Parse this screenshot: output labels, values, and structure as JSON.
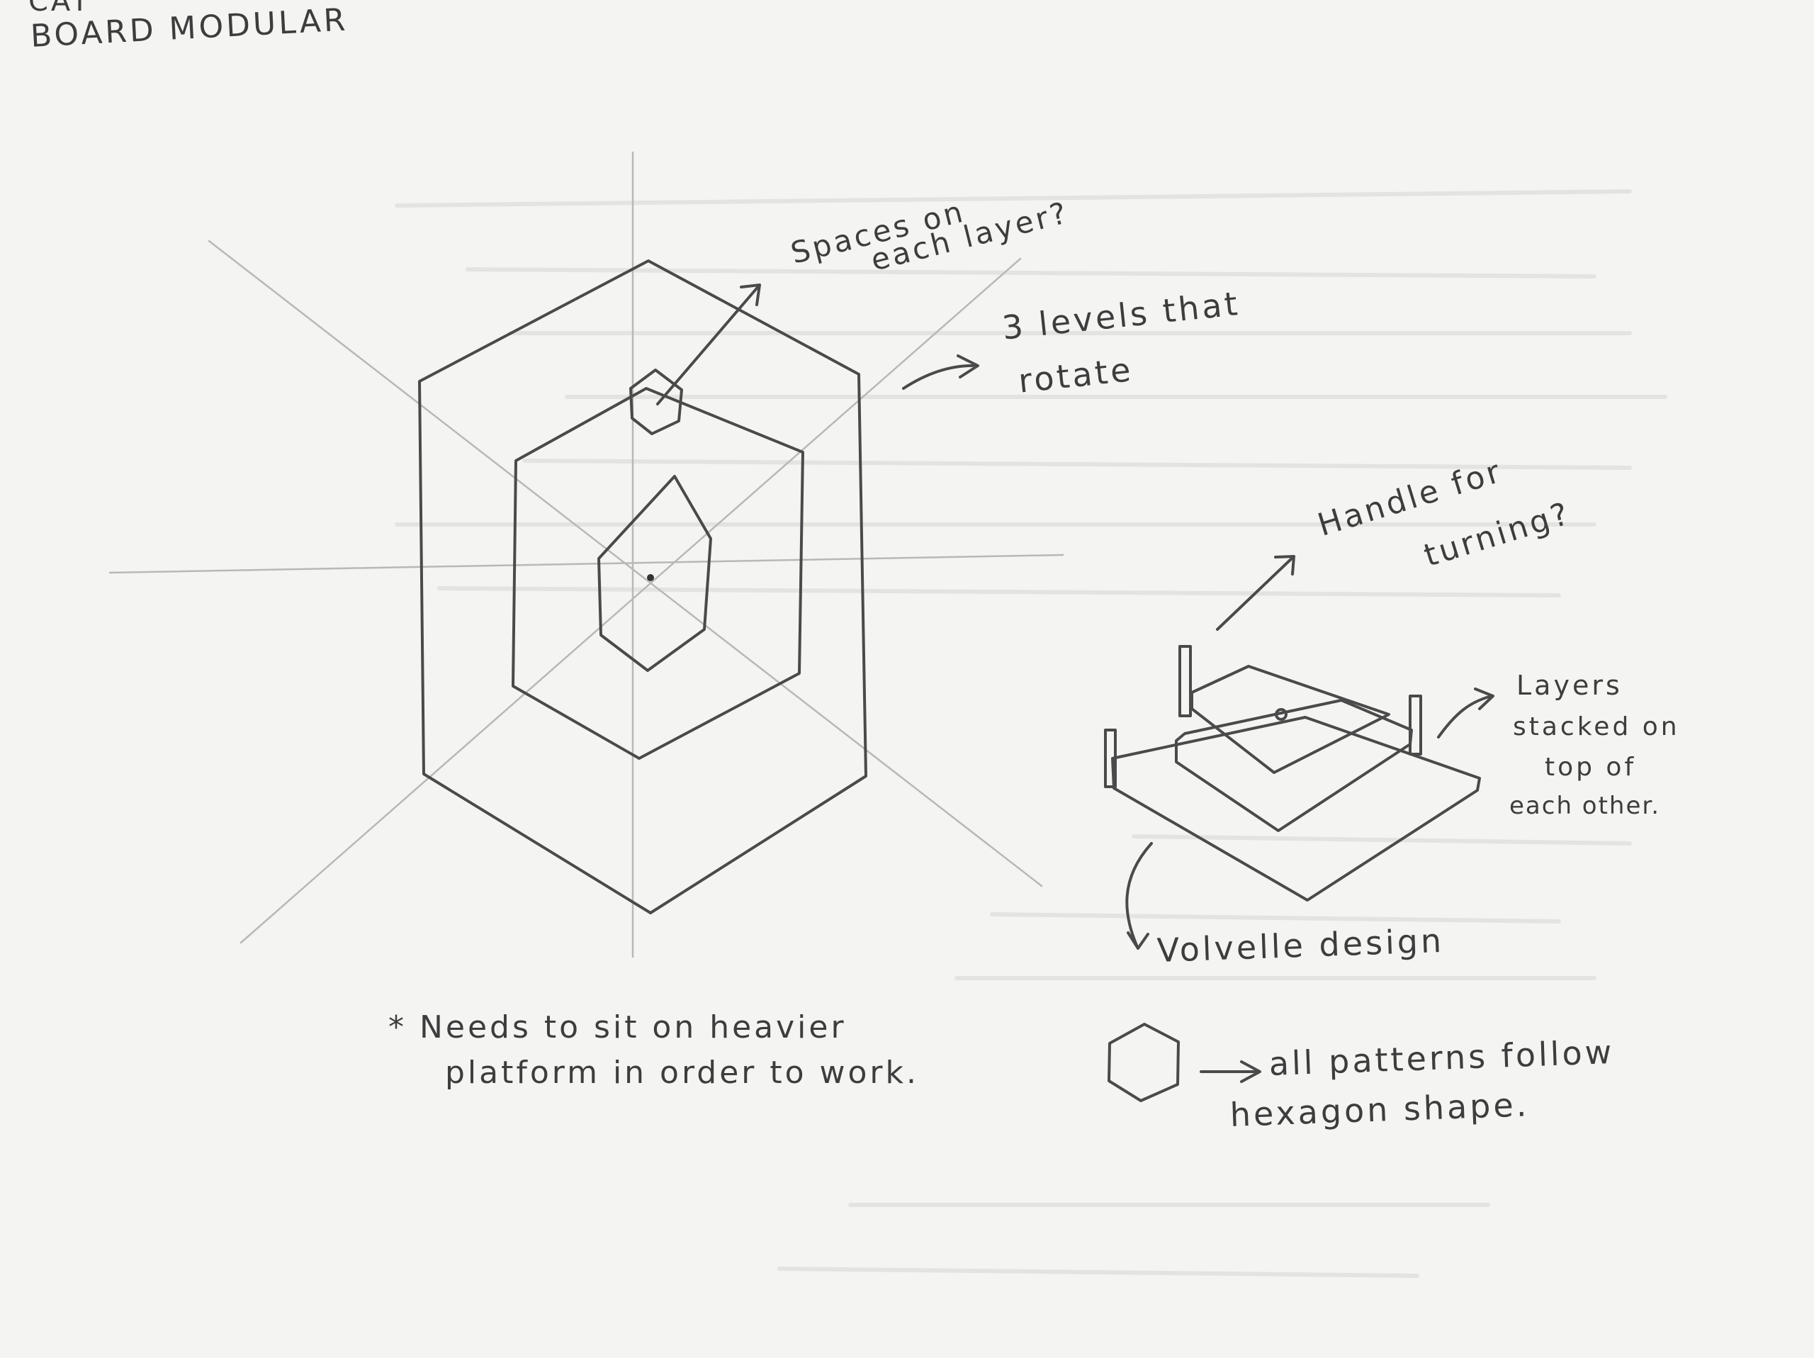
{
  "page": {
    "header_line1": "CAT",
    "header_line2": "BOARD MODULAR"
  },
  "annotations": {
    "spaces_line1": "Spaces on",
    "spaces_line2": "each layer?",
    "levels_line1": "3 levels that",
    "levels_line2": "rotate",
    "handle_line1": "Handle for",
    "handle_line2": "turning?",
    "layers_line1": "Layers",
    "layers_line2": "stacked on",
    "layers_line3": "top of",
    "layers_line4": "each other.",
    "volvelle": "Volvelle design",
    "platform_line1": "* Needs to sit on heavier",
    "platform_line2": "platform in order to work.",
    "hexagon_line1": "all patterns follow",
    "hexagon_line2": "hexagon shape."
  },
  "colors": {
    "paper": "#f4f4f2",
    "pencil": "#4a4a4a",
    "guide": "#b8b8b6"
  }
}
